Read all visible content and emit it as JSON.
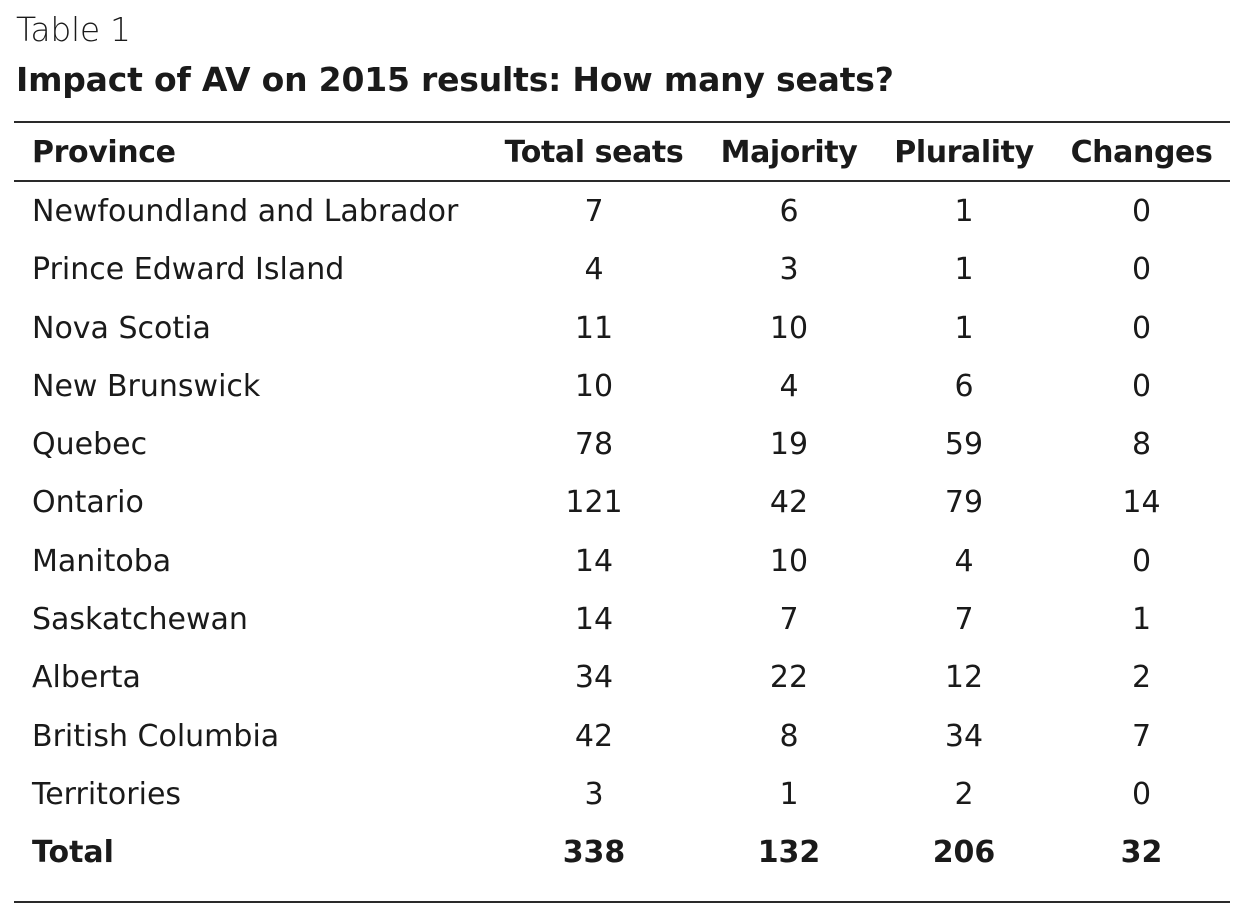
{
  "table_label": "Table 1",
  "table_title": "Impact of AV on 2015 results: How many seats?",
  "columns": {
    "province": "Province",
    "total_seats": "Total seats",
    "majority": "Majority",
    "plurality": "Plurality",
    "changes": "Changes"
  },
  "rows": [
    {
      "province": "Newfoundland and Labrador",
      "total_seats": "7",
      "majority": "6",
      "plurality": "1",
      "changes": "0"
    },
    {
      "province": "Prince Edward Island",
      "total_seats": "4",
      "majority": "3",
      "plurality": "1",
      "changes": "0"
    },
    {
      "province": "Nova Scotia",
      "total_seats": "11",
      "majority": "10",
      "plurality": "1",
      "changes": "0"
    },
    {
      "province": "New Brunswick",
      "total_seats": "10",
      "majority": "4",
      "plurality": "6",
      "changes": "0"
    },
    {
      "province": "Quebec",
      "total_seats": "78",
      "majority": "19",
      "plurality": "59",
      "changes": "8"
    },
    {
      "province": "Ontario",
      "total_seats": "121",
      "majority": "42",
      "plurality": "79",
      "changes": "14"
    },
    {
      "province": "Manitoba",
      "total_seats": "14",
      "majority": "10",
      "plurality": "4",
      "changes": "0"
    },
    {
      "province": "Saskatchewan",
      "total_seats": "14",
      "majority": "7",
      "plurality": "7",
      "changes": "1"
    },
    {
      "province": "Alberta",
      "total_seats": "34",
      "majority": "22",
      "plurality": "12",
      "changes": "2"
    },
    {
      "province": "British Columbia",
      "total_seats": "42",
      "majority": "8",
      "plurality": "34",
      "changes": "7"
    },
    {
      "province": "Territories",
      "total_seats": "3",
      "majority": "1",
      "plurality": "2",
      "changes": "0"
    }
  ],
  "total": {
    "province": "Total",
    "total_seats": "338",
    "majority": "132",
    "plurality": "206",
    "changes": "32"
  }
}
